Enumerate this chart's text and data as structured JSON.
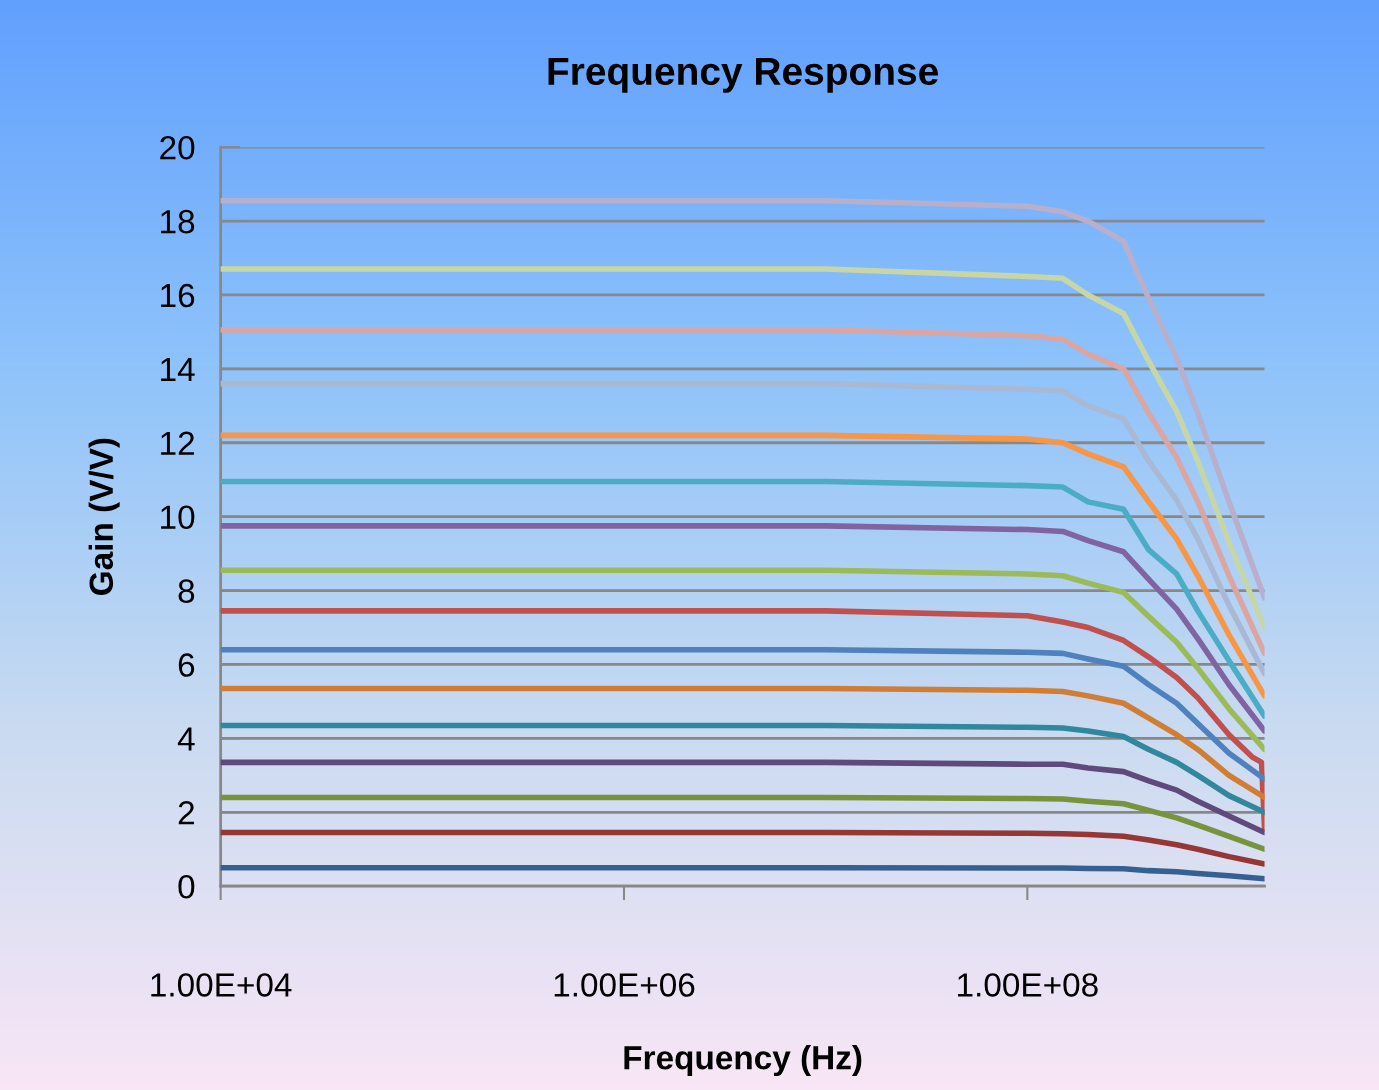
{
  "chart_data": {
    "type": "line",
    "title": "Frequency Response",
    "xlabel": "Frequency (Hz)",
    "ylabel": "Gain (V/V)",
    "log": "x",
    "xlim": [
      10000,
      1500000000
    ],
    "xticks": [
      {
        "value": 10000,
        "label": "1.00E+04"
      },
      {
        "value": 1000000,
        "label": "1.00E+06"
      },
      {
        "value": 100000000,
        "label": "1.00E+08"
      }
    ],
    "ylim": [
      0,
      20
    ],
    "yticks": [
      0,
      2,
      4,
      6,
      8,
      10,
      12,
      14,
      16,
      18,
      20
    ],
    "grid": "y",
    "marker": "none",
    "line_style": "solid",
    "x": [
      10000,
      10000000,
      100000000,
      150000000,
      200000000,
      300000000,
      400000000,
      550000000,
      700000000,
      1000000000,
      1500000000
    ],
    "series": [
      {
        "color": "#b8afcc",
        "values": [
          18.55,
          18.55,
          18.4,
          18.25,
          18.0,
          17.45,
          15.9,
          14.3,
          12.8,
          10.4,
          7.8
        ]
      },
      {
        "color": "#c6d6a6",
        "values": [
          16.7,
          16.7,
          16.5,
          16.45,
          16.0,
          15.5,
          14.2,
          12.85,
          11.5,
          9.3,
          7.0
        ]
      },
      {
        "color": "#d9a6a3",
        "values": [
          15.05,
          15.05,
          14.9,
          14.8,
          14.4,
          14.0,
          12.8,
          11.6,
          10.4,
          8.4,
          6.3
        ]
      },
      {
        "color": "#a9b9d4",
        "values": [
          13.6,
          13.6,
          13.45,
          13.4,
          13.0,
          12.65,
          11.5,
          10.45,
          9.4,
          7.6,
          5.75
        ]
      },
      {
        "color": "#f79646",
        "values": [
          12.2,
          12.2,
          12.1,
          12.0,
          11.7,
          11.35,
          10.4,
          9.4,
          8.4,
          6.8,
          5.15
        ]
      },
      {
        "color": "#4bacc6",
        "values": [
          10.95,
          10.95,
          10.84,
          10.8,
          10.4,
          10.2,
          9.1,
          8.45,
          7.45,
          6.1,
          4.6
        ]
      },
      {
        "color": "#8064a2",
        "values": [
          9.75,
          9.75,
          9.65,
          9.6,
          9.35,
          9.05,
          8.3,
          7.5,
          6.7,
          5.45,
          4.2
        ]
      },
      {
        "color": "#9bbb59",
        "values": [
          8.55,
          8.55,
          8.45,
          8.4,
          8.2,
          7.95,
          7.3,
          6.6,
          5.9,
          4.8,
          3.7
        ]
      },
      {
        "color": "#c0504d",
        "x": [
          10000,
          10000000,
          100000000,
          150000000,
          200000000,
          300000000,
          400000000,
          550000000,
          700000000,
          1000000000,
          1300000000,
          1450000000,
          1500000000
        ],
        "values": [
          7.45,
          7.45,
          7.32,
          7.15,
          7.0,
          6.65,
          6.2,
          5.65,
          5.1,
          4.1,
          3.5,
          3.35,
          1.55
        ]
      },
      {
        "color": "#4f81bd",
        "values": [
          6.4,
          6.4,
          6.33,
          6.3,
          6.15,
          5.95,
          5.45,
          4.95,
          4.4,
          3.6,
          2.9
        ]
      },
      {
        "color": "#d07d35",
        "values": [
          5.35,
          5.35,
          5.3,
          5.27,
          5.15,
          4.95,
          4.55,
          4.1,
          3.7,
          3.0,
          2.4
        ]
      },
      {
        "color": "#31879c",
        "values": [
          4.35,
          4.35,
          4.3,
          4.28,
          4.2,
          4.05,
          3.7,
          3.35,
          3.0,
          2.45,
          2.0
        ]
      },
      {
        "color": "#604a7b",
        "values": [
          3.35,
          3.35,
          3.3,
          3.3,
          3.2,
          3.1,
          2.85,
          2.6,
          2.3,
          1.9,
          1.45
        ]
      },
      {
        "color": "#77933c",
        "values": [
          2.4,
          2.4,
          2.37,
          2.36,
          2.3,
          2.23,
          2.05,
          1.85,
          1.65,
          1.35,
          1.0
        ]
      },
      {
        "color": "#953735",
        "values": [
          1.45,
          1.45,
          1.43,
          1.42,
          1.4,
          1.35,
          1.25,
          1.12,
          1.0,
          0.8,
          0.6
        ]
      },
      {
        "color": "#376092",
        "values": [
          0.5,
          0.5,
          0.49,
          0.49,
          0.48,
          0.47,
          0.42,
          0.39,
          0.34,
          0.28,
          0.2
        ]
      }
    ]
  }
}
